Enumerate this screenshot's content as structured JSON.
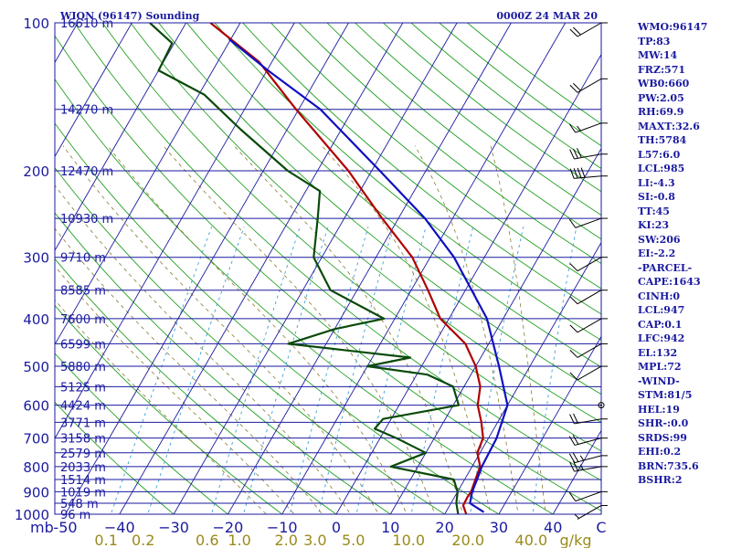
{
  "title": "WIQN (96147) Sounding",
  "datetime": "0000Z 24 MAR 20",
  "chart_data": {
    "type": "line",
    "title": "WIQN (96147) Sounding",
    "y_unit": "mb",
    "mix_unit": "g/kg",
    "yscale": "log",
    "ylim": [
      1000,
      100
    ],
    "xlim": [
      -50,
      50
    ],
    "pressure_levels": [
      100,
      200,
      300,
      400,
      500,
      600,
      700,
      800,
      900,
      1000
    ],
    "temperature_ticks": [
      -50,
      -40,
      -30,
      -20,
      -10,
      0,
      10,
      20,
      30,
      40
    ],
    "temperature_tick_labels": [
      "-50",
      "−40",
      "−30",
      "−20",
      "−10",
      "0",
      "10",
      "20",
      "30",
      "40",
      "C"
    ],
    "mixing_ratio_labels": [
      "0.1",
      "0.2",
      "0.6",
      "1.0",
      "2.0",
      "3.0",
      "5.0",
      "10.0",
      "20.0",
      "40.0"
    ],
    "height_labels": [
      {
        "p": 100,
        "text": "16610 m"
      },
      {
        "p": 150,
        "text": "14270 m"
      },
      {
        "p": 200,
        "text": "12470 m"
      },
      {
        "p": 250,
        "text": "10930 m"
      },
      {
        "p": 300,
        "text": "9710 m"
      },
      {
        "p": 350,
        "text": "8585 m"
      },
      {
        "p": 400,
        "text": "7600 m"
      },
      {
        "p": 450,
        "text": "6599 m"
      },
      {
        "p": 500,
        "text": "5880 m"
      },
      {
        "p": 550,
        "text": "5125 m"
      },
      {
        "p": 600,
        "text": "4424 m"
      },
      {
        "p": 650,
        "text": "3771 m"
      },
      {
        "p": 700,
        "text": "3158 m"
      },
      {
        "p": 750,
        "text": "2579 m"
      },
      {
        "p": 800,
        "text": "2033 m"
      },
      {
        "p": 850,
        "text": "1514 m"
      },
      {
        "p": 900,
        "text": "1019 m"
      },
      {
        "p": 950,
        "text": "548 m"
      },
      {
        "p": 1000,
        "text": "96 m"
      }
    ],
    "series": [
      {
        "role": "temperature",
        "color": "#b00000",
        "points": [
          [
            1000,
            24.0
          ],
          [
            960,
            22.5
          ],
          [
            925,
            22.4
          ],
          [
            900,
            22.5
          ],
          [
            850,
            22.0
          ],
          [
            800,
            21.5
          ],
          [
            750,
            19.5
          ],
          [
            700,
            19.0
          ],
          [
            650,
            17.0
          ],
          [
            600,
            14.5
          ],
          [
            550,
            13.0
          ],
          [
            500,
            10.0
          ],
          [
            450,
            5.7
          ],
          [
            400,
            -1.6
          ],
          [
            350,
            -6.9
          ],
          [
            300,
            -13.3
          ],
          [
            250,
            -23.0
          ],
          [
            200,
            -34.3
          ],
          [
            150,
            -50.5
          ],
          [
            120,
            -62.4
          ],
          [
            100,
            -75.5
          ]
        ]
      },
      {
        "role": "dewpoint",
        "color": "#0a4a0a",
        "points": [
          [
            1000,
            22.5
          ],
          [
            950,
            21.0
          ],
          [
            900,
            20.0
          ],
          [
            850,
            18.0
          ],
          [
            800,
            5.0
          ],
          [
            750,
            10.0
          ],
          [
            700,
            3.0
          ],
          [
            670,
            -2.0
          ],
          [
            640,
            -1.5
          ],
          [
            600,
            11.0
          ],
          [
            550,
            8.0
          ],
          [
            520,
            2.0
          ],
          [
            500,
            -10.0
          ],
          [
            480,
            -3.0
          ],
          [
            450,
            -27.0
          ],
          [
            420,
            -20.0
          ],
          [
            400,
            -12.0
          ],
          [
            350,
            -24.9
          ],
          [
            300,
            -31.5
          ],
          [
            250,
            -34.9
          ],
          [
            220,
            -37.4
          ],
          [
            200,
            -45.5
          ],
          [
            165,
            -58.5
          ],
          [
            140,
            -69.0
          ],
          [
            125,
            -80.0
          ],
          [
            110,
            -80.4
          ],
          [
            100,
            -86.7
          ]
        ]
      },
      {
        "role": "parcel",
        "color": "#1010c0",
        "points": [
          [
            990,
            27.0
          ],
          [
            950,
            23.5
          ],
          [
            900,
            22.7
          ],
          [
            850,
            22.3
          ],
          [
            800,
            21.8
          ],
          [
            700,
            21.5
          ],
          [
            600,
            20.0
          ],
          [
            500,
            14.3
          ],
          [
            400,
            7.0
          ],
          [
            300,
            -5.6
          ],
          [
            250,
            -15.1
          ],
          [
            200,
            -28.5
          ],
          [
            150,
            -46.0
          ],
          [
            125,
            -59.8
          ],
          [
            108,
            -70.3
          ]
        ]
      }
    ],
    "wind_barbs": [
      {
        "p": 100,
        "dir": 240,
        "speed": 20
      },
      {
        "p": 130,
        "dir": 240,
        "speed": 20
      },
      {
        "p": 160,
        "dir": 250,
        "speed": 15
      },
      {
        "p": 185,
        "dir": 260,
        "speed": 30
      },
      {
        "p": 205,
        "dir": 265,
        "speed": 40
      },
      {
        "p": 250,
        "dir": 250,
        "speed": 10
      },
      {
        "p": 300,
        "dir": 240,
        "speed": 10
      },
      {
        "p": 350,
        "dir": 240,
        "speed": 10
      },
      {
        "p": 400,
        "dir": 240,
        "speed": 10
      },
      {
        "p": 450,
        "dir": 240,
        "speed": 10
      },
      {
        "p": 500,
        "dir": 240,
        "speed": 10
      },
      {
        "p": 640,
        "dir": 260,
        "speed": 20
      },
      {
        "p": 700,
        "dir": 255,
        "speed": 20
      },
      {
        "p": 760,
        "dir": 255,
        "speed": 25
      },
      {
        "p": 800,
        "dir": 260,
        "speed": 25
      },
      {
        "p": 900,
        "dir": 250,
        "speed": 10
      },
      {
        "p": 960,
        "dir": 240,
        "speed": 5
      }
    ],
    "calm_marker_p": 600
  },
  "indices": [
    "WMO:96147",
    "TP:83",
    "MW:14",
    "FRZ:571",
    "WB0:660",
    "PW:2.05",
    "RH:69.9",
    "MAXT:32.6",
    "TH:5784",
    "L57:6.0",
    "LCL:985",
    "LI:-4.3",
    "SI:-0.8",
    "TT:45",
    "KI:23",
    "SW:206",
    "EI:-2.2",
    "-PARCEL-",
    "CAPE:1643",
    "CINH:0",
    "LCL:947",
    "CAP:0.1",
    "LFC:942",
    "EL:132",
    "MPL:72",
    "-WIND-",
    "STM:81/5",
    "HEL:19",
    "SHR-:0.0",
    "SRDS:99",
    "EHI:0.2",
    "BRN:735.6",
    "BSHR:2"
  ]
}
